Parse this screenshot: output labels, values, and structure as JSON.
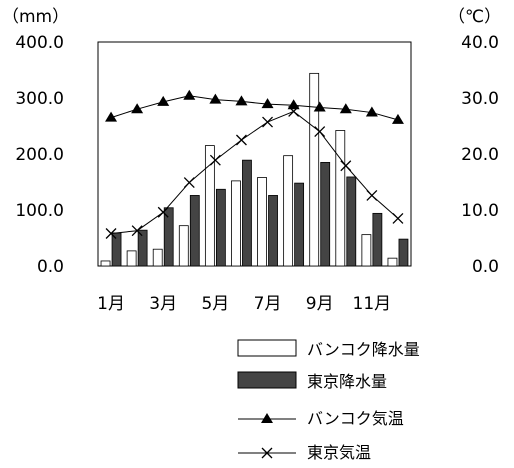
{
  "chart_data": {
    "type": "bar",
    "categories": [
      "1月",
      "2月",
      "3月",
      "4月",
      "5月",
      "6月",
      "7月",
      "8月",
      "9月",
      "10月",
      "11月",
      "12月"
    ],
    "xtick_labels": [
      "1月",
      "3月",
      "5月",
      "7月",
      "9月",
      "11月"
    ],
    "y_left": {
      "unit_label": "（mm）",
      "ticks": [
        "400.0",
        "300.0",
        "200.0",
        "100.0",
        "0.0"
      ],
      "ylim": [
        0,
        400
      ]
    },
    "y_right": {
      "unit_label": "（℃）",
      "ticks": [
        "40.0",
        "30.0",
        "20.0",
        "10.0",
        "0.0"
      ],
      "ylim": [
        0,
        40
      ]
    },
    "series": [
      {
        "name": "バンコク降水量",
        "kind": "bar",
        "fill": "#ffffff",
        "axis": "left",
        "values": [
          9,
          27,
          30,
          72,
          215,
          152,
          158,
          197,
          344,
          242,
          56,
          14
        ]
      },
      {
        "name": "東京降水量",
        "kind": "bar",
        "fill": "#444444",
        "axis": "left",
        "values": [
          59,
          64,
          104,
          126,
          137,
          189,
          126,
          148,
          185,
          159,
          94,
          48
        ]
      },
      {
        "name": "バンコク気温",
        "kind": "line",
        "marker": "triangle",
        "axis": "right",
        "values": [
          26.5,
          28.0,
          29.3,
          30.4,
          29.7,
          29.4,
          28.9,
          28.7,
          28.3,
          28.0,
          27.4,
          26.1
        ]
      },
      {
        "name": "東京気温",
        "kind": "line",
        "marker": "x",
        "axis": "right",
        "values": [
          5.8,
          6.3,
          9.6,
          14.9,
          18.9,
          22.5,
          25.7,
          27.6,
          24.0,
          17.9,
          12.6,
          8.5
        ]
      }
    ],
    "grid": false,
    "legend_position": "bottom-right"
  }
}
